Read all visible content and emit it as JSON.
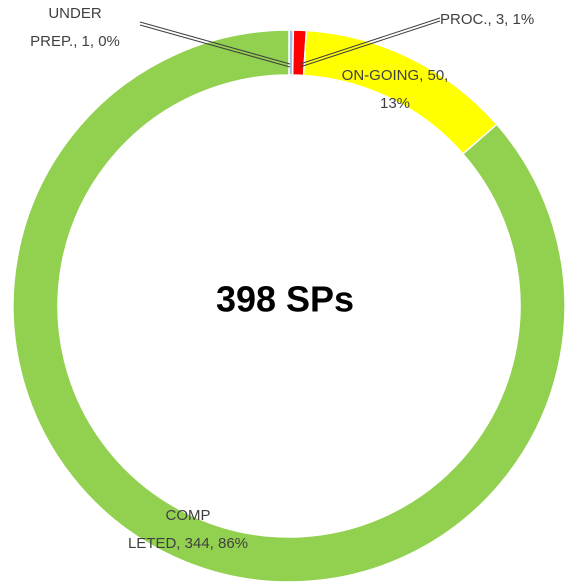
{
  "chart_data": {
    "type": "donut",
    "center_label": "398 SPs",
    "values": [
      1,
      3,
      50,
      344
    ],
    "value_labels": [
      [
        "UNDER",
        "PREP., 1, 0%"
      ],
      [
        "PROC., 3, 1%"
      ],
      [
        "ON-GOING, 50,",
        "13%"
      ],
      [
        "COMP",
        "LETED, 344, 86%"
      ]
    ],
    "colors": [
      "#9dc3e6",
      "#ff0000",
      "#ffff00",
      "#92d050"
    ]
  }
}
